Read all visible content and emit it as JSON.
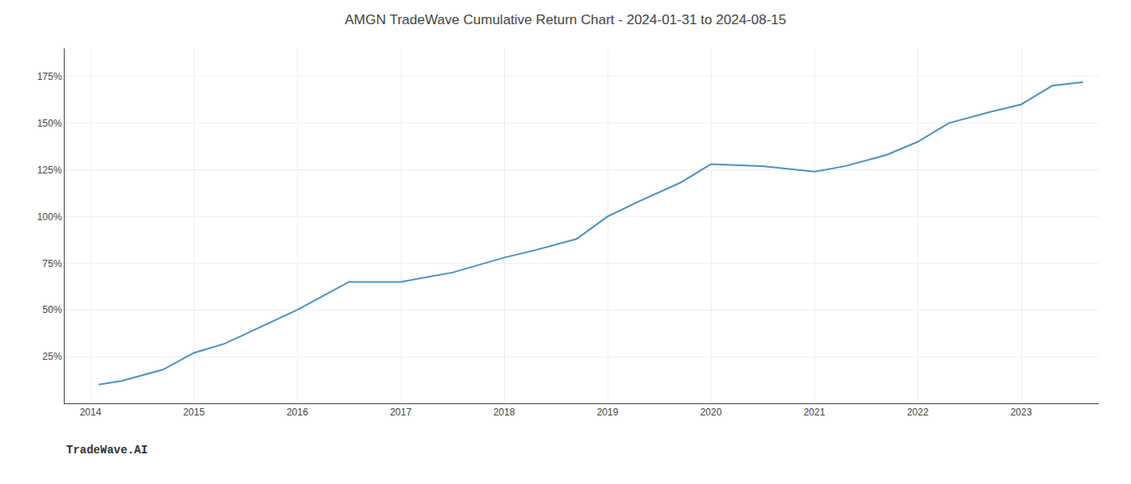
{
  "chart_data": {
    "type": "line",
    "title": "AMGN TradeWave Cumulative Return Chart - 2024-01-31 to 2024-08-15",
    "annotations": [
      "TradeWave.AI"
    ],
    "x": [
      2014.08,
      2014.3,
      2014.7,
      2015.0,
      2015.3,
      2016.0,
      2016.5,
      2017.0,
      2017.5,
      2018.0,
      2018.3,
      2018.7,
      2019.0,
      2019.3,
      2019.7,
      2020.0,
      2020.5,
      2021.0,
      2021.3,
      2021.7,
      2022.0,
      2022.3,
      2022.7,
      2023.0,
      2023.3,
      2023.6
    ],
    "values": [
      10,
      12,
      18,
      27,
      32,
      50,
      65,
      65,
      70,
      78,
      82,
      88,
      100,
      108,
      118,
      128,
      127,
      124,
      127,
      133,
      140,
      150,
      156,
      160,
      170,
      172
    ],
    "color": "#4a90c4",
    "xlim": [
      2013.75,
      2023.75
    ],
    "xticks": [
      2014,
      2015,
      2016,
      2017,
      2018,
      2019,
      2020,
      2021,
      2022,
      2023
    ],
    "ylim": [
      0,
      190
    ],
    "yticks": [
      {
        "value": 25,
        "label": "25%"
      },
      {
        "value": 50,
        "label": "50%"
      },
      {
        "value": 75,
        "label": "75%"
      },
      {
        "value": 100,
        "label": "100%"
      },
      {
        "value": 125,
        "label": "125%"
      },
      {
        "value": 150,
        "label": "150%"
      },
      {
        "value": 175,
        "label": "175%"
      }
    ],
    "grid": true
  }
}
